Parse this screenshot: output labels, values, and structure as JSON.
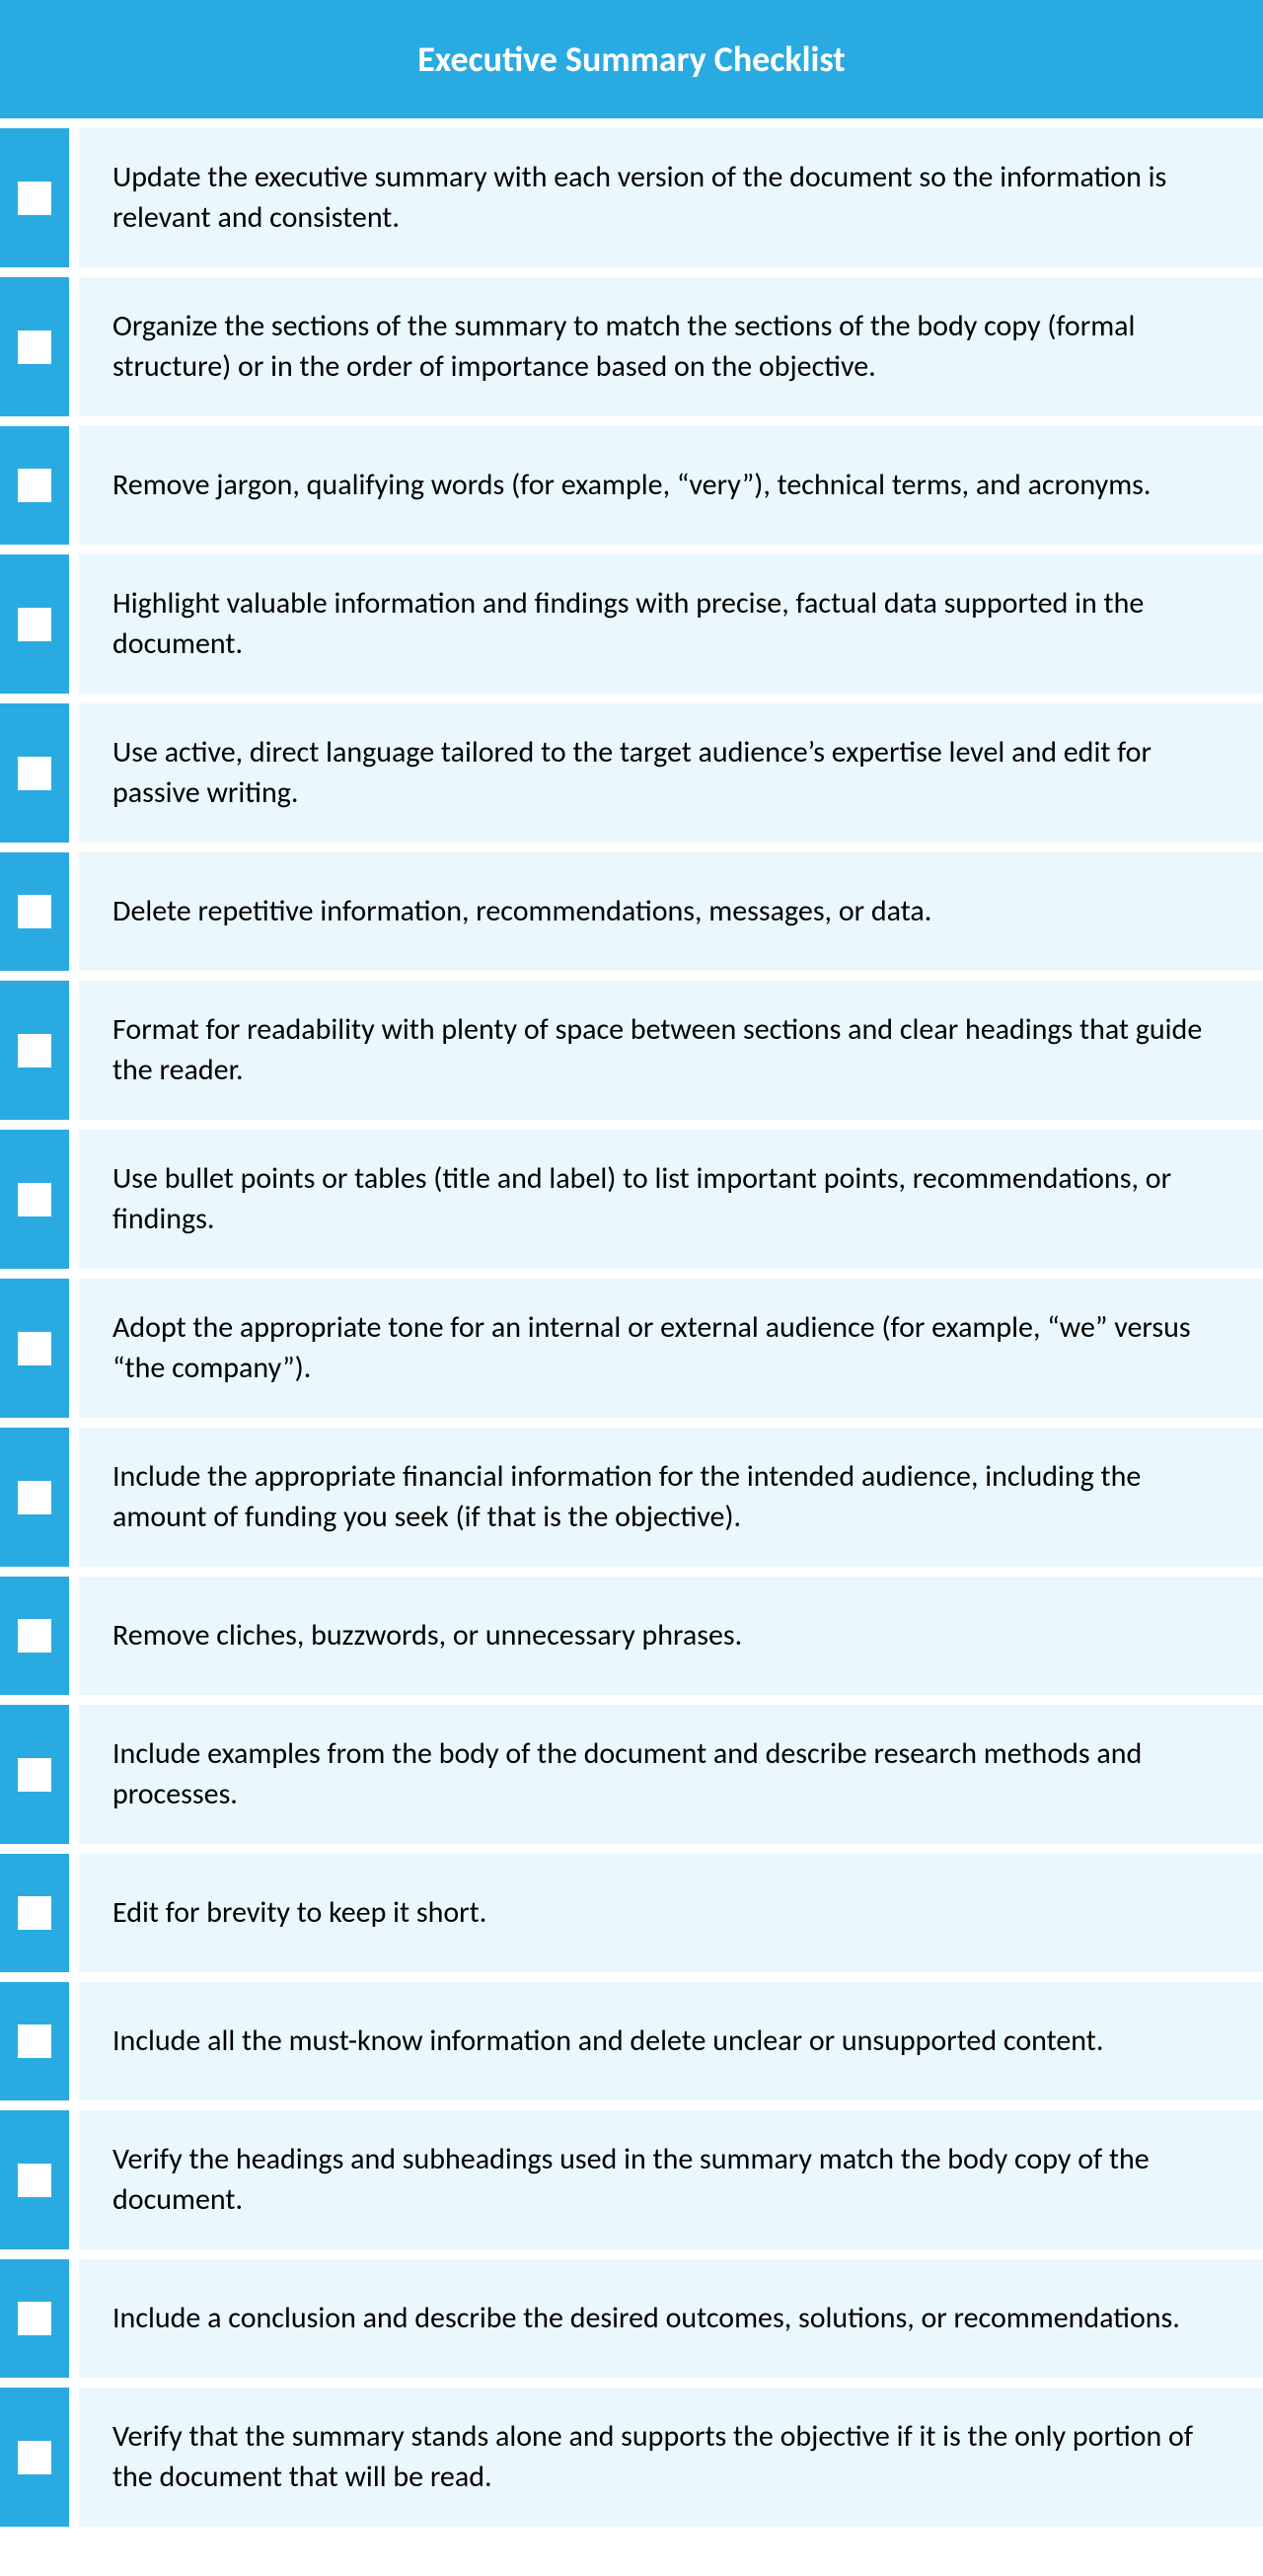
{
  "header": {
    "title": "Executive Summary Checklist",
    "bg_color": "#29abe2",
    "text_color": "#ffffff",
    "font_size": 36,
    "font_weight": "bold"
  },
  "styling": {
    "row_gap": 10,
    "check_cell_bg": "#29abe2",
    "check_cell_width": 70,
    "checkbox_size": 34,
    "checkbox_bg": "#ffffff",
    "text_cell_bg": "#eaf7fd",
    "text_color": "#000000",
    "text_font_size": 30,
    "text_padding_v": 30,
    "text_padding_h": 34,
    "font_family": "Calibri"
  },
  "items": [
    {
      "text": "Update the executive summary with each version of the document so the information is relevant and consistent."
    },
    {
      "text": "Organize the sections of the summary to match the sections of the body copy (formal structure) or in the order of importance based on the objective."
    },
    {
      "text": "Remove jargon, qualifying words (for example, “very”), technical terms, and acronyms."
    },
    {
      "text": "Highlight valuable information and findings with precise, factual data supported in the document."
    },
    {
      "text": "Use active, direct language tailored to the target audience’s expertise level and edit for passive writing."
    },
    {
      "text": "Delete repetitive information, recommendations, messages, or data."
    },
    {
      "text": "Format for readability with plenty of space between sections and clear headings that guide the reader."
    },
    {
      "text": "Use bullet points or tables (title and label) to list important points, recommendations, or findings."
    },
    {
      "text": "Adopt the appropriate tone for an internal or external audience (for example, “we” versus “the company”)."
    },
    {
      "text": "Include the appropriate financial information for the intended audience, including the amount of funding you seek (if that is the objective)."
    },
    {
      "text": "Remove cliches, buzzwords, or unnecessary phrases."
    },
    {
      "text": "Include examples from the body of the document and describe research methods and processes."
    },
    {
      "text": "Edit for brevity to keep it short."
    },
    {
      "text": "Include all the must-know information and delete unclear or unsupported content."
    },
    {
      "text": "Verify the headings and subheadings used in the summary match the body copy of the document."
    },
    {
      "text": "Include a conclusion and describe the desired outcomes, solutions, or recommendations."
    },
    {
      "text": "Verify that the summary stands alone and supports the objective if it is the only portion of the document that will be read."
    }
  ]
}
